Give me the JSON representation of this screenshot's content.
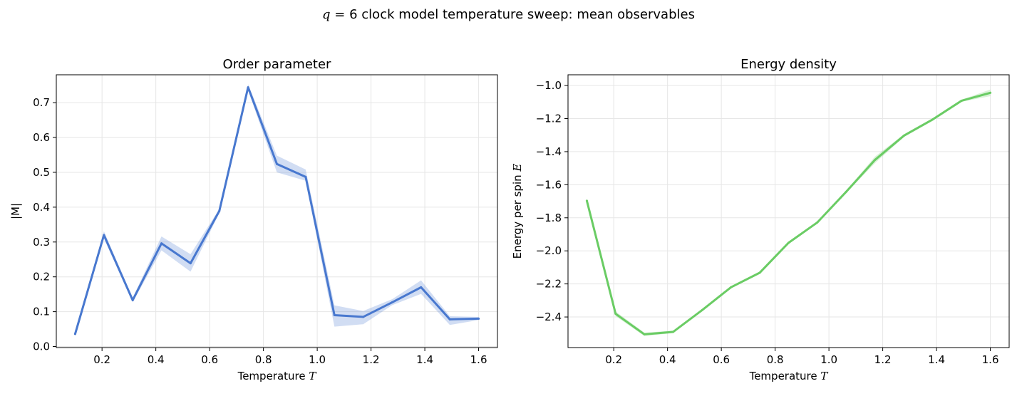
{
  "figure": {
    "suptitle_var": "q",
    "suptitle_rest": " = 6 clock model temperature sweep: mean observables"
  },
  "chart_data": [
    {
      "type": "line",
      "title": "Order parameter",
      "xlabel_text": "Temperature ",
      "xlabel_var": "T",
      "ylabel_text": "|M|",
      "xlim": [
        0.03,
        1.67
      ],
      "ylim": [
        -0.003,
        0.78
      ],
      "xticks": [
        0.2,
        0.4,
        0.6,
        0.8,
        1.0,
        1.2,
        1.4,
        1.6
      ],
      "xtick_labels": [
        "0.2",
        "0.4",
        "0.6",
        "0.8",
        "1.0",
        "1.2",
        "1.4",
        "1.6"
      ],
      "yticks": [
        0.0,
        0.1,
        0.2,
        0.3,
        0.4,
        0.5,
        0.6,
        0.7
      ],
      "ytick_labels": [
        "0.0",
        "0.1",
        "0.2",
        "0.3",
        "0.4",
        "0.5",
        "0.6",
        "0.7"
      ],
      "grid": true,
      "color": "#4878cf",
      "band_color": "#4878cf",
      "series": [
        {
          "x": [
            0.1,
            0.207,
            0.314,
            0.421,
            0.529,
            0.636,
            0.743,
            0.85,
            0.957,
            1.064,
            1.171,
            1.279,
            1.386,
            1.493,
            1.6
          ],
          "y": [
            0.036,
            0.32,
            0.133,
            0.296,
            0.239,
            0.389,
            0.744,
            0.524,
            0.487,
            0.09,
            0.085,
            0.127,
            0.17,
            0.078,
            0.08
          ],
          "band_low": [
            0.034,
            0.31,
            0.127,
            0.276,
            0.215,
            0.383,
            0.735,
            0.5,
            0.476,
            0.057,
            0.064,
            0.119,
            0.151,
            0.062,
            0.076
          ],
          "band_high": [
            0.038,
            0.331,
            0.14,
            0.316,
            0.265,
            0.395,
            0.753,
            0.548,
            0.508,
            0.118,
            0.102,
            0.136,
            0.19,
            0.087,
            0.085
          ]
        }
      ]
    },
    {
      "type": "line",
      "title": "Energy density",
      "xlabel_text": "Temperature ",
      "xlabel_var": "T",
      "ylabel_text": "Energy per spin ",
      "ylabel_var": "E",
      "xlim": [
        0.03,
        1.67
      ],
      "ylim": [
        -2.585,
        -0.935
      ],
      "xticks": [
        0.2,
        0.4,
        0.6,
        0.8,
        1.0,
        1.2,
        1.4,
        1.6
      ],
      "xtick_labels": [
        "0.2",
        "0.4",
        "0.6",
        "0.8",
        "1.0",
        "1.2",
        "1.4",
        "1.6"
      ],
      "yticks": [
        -2.4,
        -2.2,
        -2.0,
        -1.8,
        -1.6,
        -1.4,
        -1.2,
        -1.0
      ],
      "ytick_labels": [
        "−2.4",
        "−2.2",
        "−2.0",
        "−1.8",
        "−1.6",
        "−1.4",
        "−1.2",
        "−1.0"
      ],
      "grid": true,
      "color": "#6acc64",
      "band_color": "#6acc64",
      "series": [
        {
          "x": [
            0.1,
            0.207,
            0.314,
            0.421,
            0.529,
            0.636,
            0.743,
            0.85,
            0.957,
            1.064,
            1.171,
            1.279,
            1.386,
            1.493,
            1.6
          ],
          "y": [
            -1.697,
            -2.381,
            -2.505,
            -2.49,
            -2.358,
            -2.22,
            -2.132,
            -1.951,
            -1.828,
            -1.643,
            -1.45,
            -1.303,
            -1.205,
            -1.092,
            -1.044
          ],
          "band_low": [
            -1.7,
            -2.395,
            -2.515,
            -2.498,
            -2.362,
            -2.224,
            -2.137,
            -1.957,
            -1.833,
            -1.65,
            -1.47,
            -1.311,
            -1.213,
            -1.098,
            -1.064
          ],
          "band_high": [
            -1.694,
            -2.367,
            -2.495,
            -2.482,
            -2.354,
            -2.216,
            -2.127,
            -1.945,
            -1.823,
            -1.636,
            -1.43,
            -1.295,
            -1.197,
            -1.086,
            -1.024
          ]
        }
      ]
    }
  ]
}
